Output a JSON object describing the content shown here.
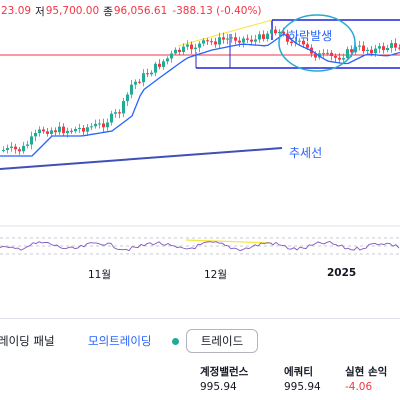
{
  "ohlc": {
    "high_value": "23.09",
    "low_label": "저",
    "low_value": "95,700.00",
    "close_label": "종",
    "close_value": "96,056.61",
    "change": "-388.13 (-0.40%)"
  },
  "annotations": {
    "decline_label": "하락발생",
    "trend_label": "추세선"
  },
  "time_axis": {
    "labels": [
      "11월",
      "12월",
      "2025"
    ]
  },
  "panel": {
    "tab_trading_panel": "레이딩 패널",
    "tab_paper_trading": "모의트레이딩",
    "trade_button": "트레이드",
    "connection_status_icon": "green-status-dot-icon"
  },
  "account": {
    "balance_label": "계정밸런스",
    "balance_value": "995.94",
    "equity_label": "에쿼티",
    "equity_value": "995.94",
    "realized_pl_label": "실현 손익",
    "realized_pl_value": "-4.06"
  },
  "colors": {
    "up": "#22ab94",
    "down": "#f23645",
    "ma_line": "#2962ff",
    "channel": "#2424d6",
    "trendline": "#3f51b5",
    "upper_trendline": "#f5e642",
    "annotation": "#2962ff",
    "annotation_circle": "#26a9d9",
    "price_line": "#f23645"
  }
}
